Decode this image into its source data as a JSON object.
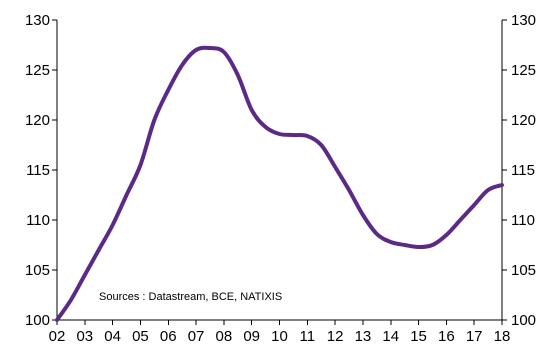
{
  "chart_data": {
    "type": "line",
    "title": "",
    "xlabel": "",
    "ylabel": "",
    "x_tick_labels": [
      "02",
      "03",
      "04",
      "05",
      "06",
      "07",
      "08",
      "09",
      "10",
      "11",
      "12",
      "13",
      "14",
      "15",
      "16",
      "17",
      "18"
    ],
    "x_range": [
      2002,
      2018
    ],
    "ylim": [
      100,
      130
    ],
    "y_ticks": [
      100,
      105,
      110,
      115,
      120,
      125,
      130
    ],
    "y_tick_labels": [
      "100",
      "105",
      "110",
      "115",
      "120",
      "125",
      "130"
    ],
    "grid": false,
    "legend": "none",
    "annotation": "Sources : Datastream,  BCE, NATIXIS",
    "series": [
      {
        "color": "#5b2a86",
        "x": [
          2002.0,
          2002.5,
          2003.0,
          2003.5,
          2004.0,
          2004.5,
          2005.0,
          2005.5,
          2006.0,
          2006.5,
          2007.0,
          2007.5,
          2008.0,
          2008.5,
          2009.0,
          2009.5,
          2010.0,
          2010.5,
          2011.0,
          2011.5,
          2012.0,
          2012.5,
          2013.0,
          2013.5,
          2014.0,
          2014.5,
          2015.0,
          2015.5,
          2016.0,
          2016.5,
          2017.0,
          2017.5,
          2018.0
        ],
        "y": [
          100.0,
          102.0,
          104.5,
          107.0,
          109.5,
          112.5,
          115.5,
          120.0,
          123.0,
          125.5,
          127.0,
          127.2,
          126.8,
          124.5,
          121.0,
          119.3,
          118.6,
          118.5,
          118.4,
          117.5,
          115.3,
          113.0,
          110.5,
          108.6,
          107.8,
          107.5,
          107.3,
          107.5,
          108.5,
          110.0,
          111.5,
          113.0,
          113.5
        ]
      }
    ]
  }
}
